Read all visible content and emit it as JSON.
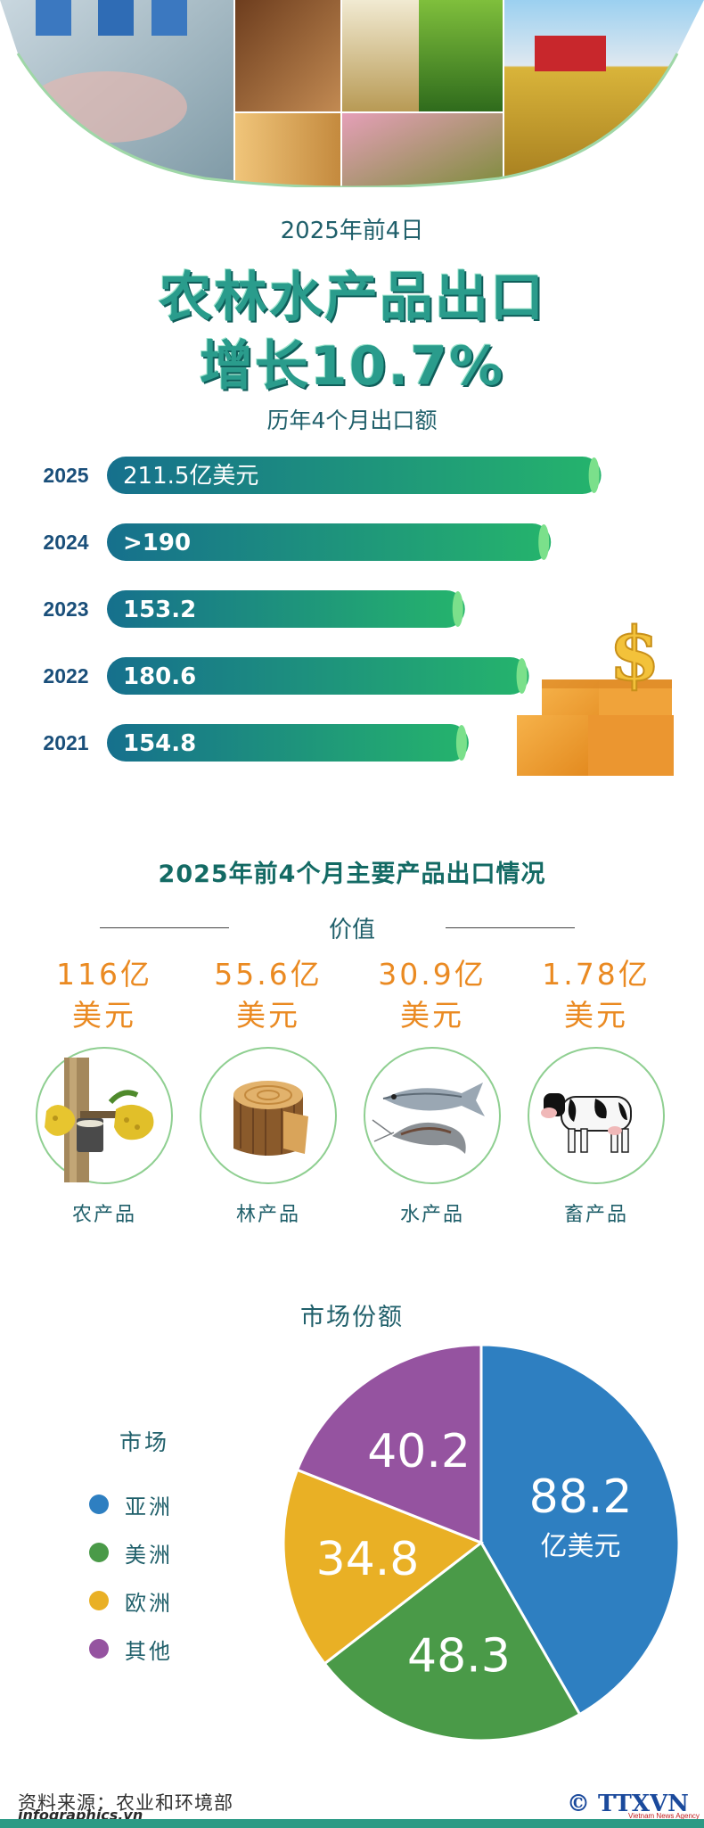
{
  "header": {
    "period": "2025年前4日",
    "headline_line1": "农林水产品出口",
    "headline_line2": "增长10.7%",
    "subtitle": "历年4个月出口额"
  },
  "colors": {
    "accent": "#1f8c87",
    "orange": "#ea8a22",
    "bar_start": "#16708d",
    "bar_end": "#25b46c"
  },
  "chart_data": [
    {
      "type": "bar",
      "orientation": "horizontal",
      "categories": [
        "2025",
        "2024",
        "2023",
        "2022",
        "2021"
      ],
      "values": [
        211.5,
        190,
        153.2,
        180.6,
        154.8
      ],
      "value_labels": [
        "211.5亿美元",
        ">190",
        "153.2",
        "180.6",
        "154.8"
      ],
      "title": "历年4个月出口额",
      "xlim": [
        0,
        225
      ]
    },
    {
      "type": "pie",
      "title": "市场份额",
      "legend_title": "市场",
      "categories": [
        "亚洲",
        "美洲",
        "欧洲",
        "其他"
      ],
      "values": [
        88.2,
        48.3,
        34.8,
        40.2
      ],
      "value_labels": [
        "88.2",
        "48.3",
        "34.8",
        "40.2"
      ],
      "unit_label": "亿美元",
      "colors": [
        "#2e7fc1",
        "#4a9a48",
        "#e9b025",
        "#9553a0"
      ],
      "legend_position": "left"
    }
  ],
  "products": {
    "title": "2025年前4个月主要产品出口情况",
    "value_heading": "价值",
    "items": [
      {
        "value_line1": "116亿",
        "value_line2": "美元",
        "name": "农产品",
        "icon": "rubber-latex-icon"
      },
      {
        "value_line1": "55.6亿",
        "value_line2": "美元",
        "name": "林产品",
        "icon": "wood-log-icon"
      },
      {
        "value_line1": "30.9亿",
        "value_line2": "美元",
        "name": "水产品",
        "icon": "fish-shrimp-icon"
      },
      {
        "value_line1": "1.78亿",
        "value_line2": "美元",
        "name": "畜产品",
        "icon": "cow-icon"
      }
    ]
  },
  "footer": {
    "source": "资料来源：农业和环境部",
    "site": "infographics.vn",
    "logo": "© TTXVN",
    "logo_sub": "Vietnam News Agency"
  }
}
